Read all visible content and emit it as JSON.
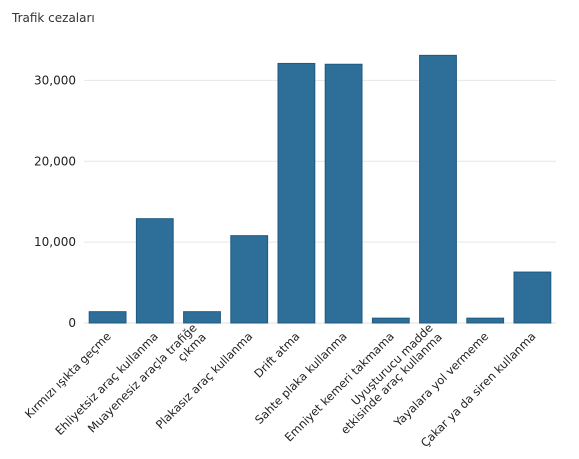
{
  "chart_data": {
    "type": "bar",
    "ylabel": "Trafik cezaları",
    "categories": [
      "Kırmızı ışıkta geçme",
      "Ehliyetsiz araç kullanma",
      "Muayenesiz araçla trafiğe çıkma",
      "Plakasız araç kullanma",
      "Drift atma",
      "Sahte plaka kullanma",
      "Emniyet kemeri takmama",
      "Uyuşturucu madde etkisinde araç kullanma",
      "Yayalara yol vermeme",
      "Çakar ya da siren kullanma"
    ],
    "tick_lines": [
      [
        "Kırmızı ışıkta geçme"
      ],
      [
        "Ehliyetsiz araç kullanma"
      ],
      [
        "Muayenesiz araçla trafiğe",
        "çıkma"
      ],
      [
        "Plakasız araç kullanma"
      ],
      [
        "Drift atma"
      ],
      [
        "Sahte plaka kullanma"
      ],
      [
        "Emniyet kemeri takmama"
      ],
      [
        "Uyuşturucu madde",
        "etkisinde araç kullanma"
      ],
      [
        "Yayalara yol vermeme"
      ],
      [
        "Çakar ya da siren kullanma"
      ]
    ],
    "values": [
      1400,
      12900,
      1400,
      10800,
      32100,
      32000,
      600,
      33100,
      600,
      6300
    ],
    "yticks": [
      "0",
      "10,000",
      "20,000",
      "30,000"
    ],
    "ytick_values": [
      0,
      10000,
      20000,
      30000
    ],
    "ylim": [
      0,
      35000
    ],
    "grid": true,
    "bar_color": "#2e6f9a"
  }
}
